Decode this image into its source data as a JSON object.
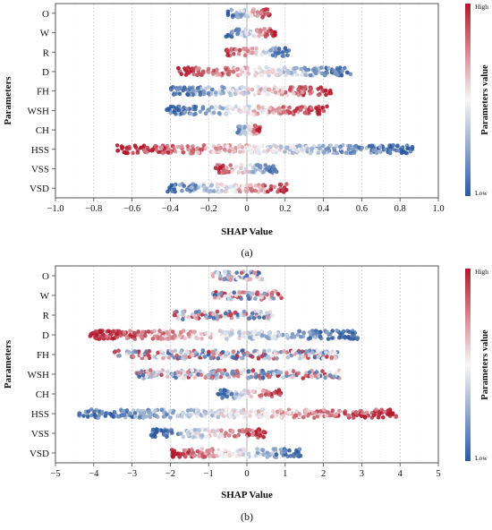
{
  "chart_data": [
    {
      "type": "scatter",
      "subtype": "shap-beeswarm",
      "panel_label": "(a)",
      "xlabel": "SHAP Value",
      "ylabel": "Parameters",
      "xlim": [
        -1.0,
        1.0
      ],
      "x_ticks": [
        -1.0,
        -0.8,
        -0.6,
        -0.4,
        -0.2,
        0,
        0.2,
        0.4,
        0.6,
        0.8,
        1.0
      ],
      "x_tick_labels": [
        "−1.0",
        "−0.8",
        "−0.6",
        "−0.4",
        "−0.2",
        "0",
        "0.2",
        "0.4",
        "0.6",
        "0.8",
        "1.0"
      ],
      "grid": true,
      "colorbar": {
        "title": "Parameters value",
        "high_label": "High",
        "low_label": "Low",
        "high_color": "#b2182b",
        "mid_color": "#f7f7f7",
        "low_color": "#2c5aa0"
      },
      "features": [
        {
          "name": "O",
          "min": -0.1,
          "max": 0.12,
          "direction": 1
        },
        {
          "name": "W",
          "min": -0.11,
          "max": 0.15,
          "direction": 1
        },
        {
          "name": "R",
          "min": -0.11,
          "max": 0.22,
          "direction": -1
        },
        {
          "name": "D",
          "min": -0.36,
          "max": 0.55,
          "direction": -1
        },
        {
          "name": "FH",
          "min": -0.4,
          "max": 0.44,
          "direction": 1
        },
        {
          "name": "WSH",
          "min": -0.42,
          "max": 0.42,
          "direction": 1
        },
        {
          "name": "CH",
          "min": -0.05,
          "max": 0.07,
          "direction": 1
        },
        {
          "name": "HSS",
          "min": -0.68,
          "max": 0.87,
          "direction": -1
        },
        {
          "name": "VSS",
          "min": -0.18,
          "max": 0.16,
          "direction": -1
        },
        {
          "name": "VSD",
          "min": -0.42,
          "max": 0.21,
          "direction": 1
        }
      ]
    },
    {
      "type": "scatter",
      "subtype": "shap-beeswarm",
      "panel_label": "(b)",
      "xlabel": "SHAP Value",
      "ylabel": "Parameters",
      "xlim": [
        -5,
        5
      ],
      "x_ticks": [
        -5,
        -4,
        -3,
        -2,
        -1,
        0,
        1,
        2,
        3,
        4,
        5
      ],
      "x_tick_labels": [
        "−5",
        "−4",
        "−3",
        "−2",
        "−1",
        "0",
        "1",
        "2",
        "3",
        "4",
        "5"
      ],
      "grid": true,
      "colorbar": {
        "title": "Parameters value",
        "high_label": "High",
        "low_label": "Low",
        "high_color": "#b2182b",
        "mid_color": "#f7f7f7",
        "low_color": "#2c5aa0"
      },
      "features": [
        {
          "name": "O",
          "min": -0.9,
          "max": 0.4,
          "direction": 0
        },
        {
          "name": "W",
          "min": -0.9,
          "max": 0.9,
          "direction": 0
        },
        {
          "name": "R",
          "min": -1.9,
          "max": 0.7,
          "direction": 0
        },
        {
          "name": "D",
          "min": -4.1,
          "max": 2.9,
          "direction": -1
        },
        {
          "name": "FH",
          "min": -3.5,
          "max": 2.4,
          "direction": 0
        },
        {
          "name": "WSH",
          "min": -2.9,
          "max": 2.5,
          "direction": 0
        },
        {
          "name": "CH",
          "min": -0.8,
          "max": 0.9,
          "direction": 1
        },
        {
          "name": "HSS",
          "min": -4.4,
          "max": 3.9,
          "direction": 1
        },
        {
          "name": "VSS",
          "min": -2.5,
          "max": 0.5,
          "direction": 1
        },
        {
          "name": "VSD",
          "min": -2.0,
          "max": 1.4,
          "direction": -1
        }
      ]
    }
  ]
}
